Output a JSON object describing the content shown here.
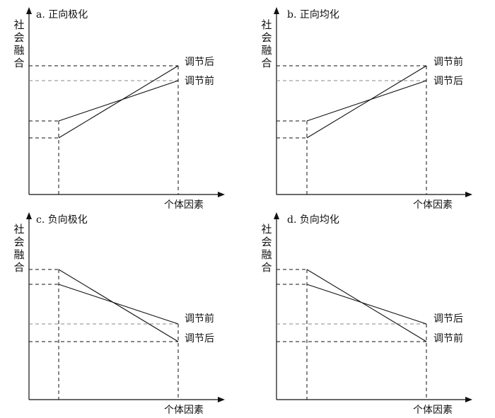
{
  "panels": [
    {
      "id": "a",
      "title": "a. 正向极化",
      "y_label": [
        "社",
        "会",
        "融",
        "合"
      ],
      "x_label": "个体因素",
      "line_labels": [
        "调节后",
        "调节前"
      ],
      "colors": {
        "axis": "#111111",
        "upper_guide": "#111111",
        "lower_guide": "#888888"
      }
    },
    {
      "id": "b",
      "title": "b. 正向均化",
      "y_label": [
        "社",
        "会",
        "融",
        "合"
      ],
      "x_label": "个体因素",
      "line_labels": [
        "调节前",
        "调节后"
      ],
      "colors": {
        "axis": "#111111",
        "upper_guide": "#111111",
        "lower_guide": "#888888"
      }
    },
    {
      "id": "c",
      "title": "c. 负向极化",
      "y_label": [
        "社",
        "会",
        "融",
        "合"
      ],
      "x_label": "个体因素",
      "line_labels": [
        "调节前",
        "调节后"
      ],
      "colors": {
        "axis": "#111111",
        "upper_guide": "#888888",
        "lower_guide": "#111111"
      }
    },
    {
      "id": "d",
      "title": "d. 负向均化",
      "y_label": [
        "社",
        "会",
        "融",
        "合"
      ],
      "x_label": "个体因素",
      "line_labels": [
        "调节后",
        "调节前"
      ],
      "colors": {
        "axis": "#111111",
        "upper_guide": "#888888",
        "lower_guide": "#111111"
      }
    }
  ]
}
